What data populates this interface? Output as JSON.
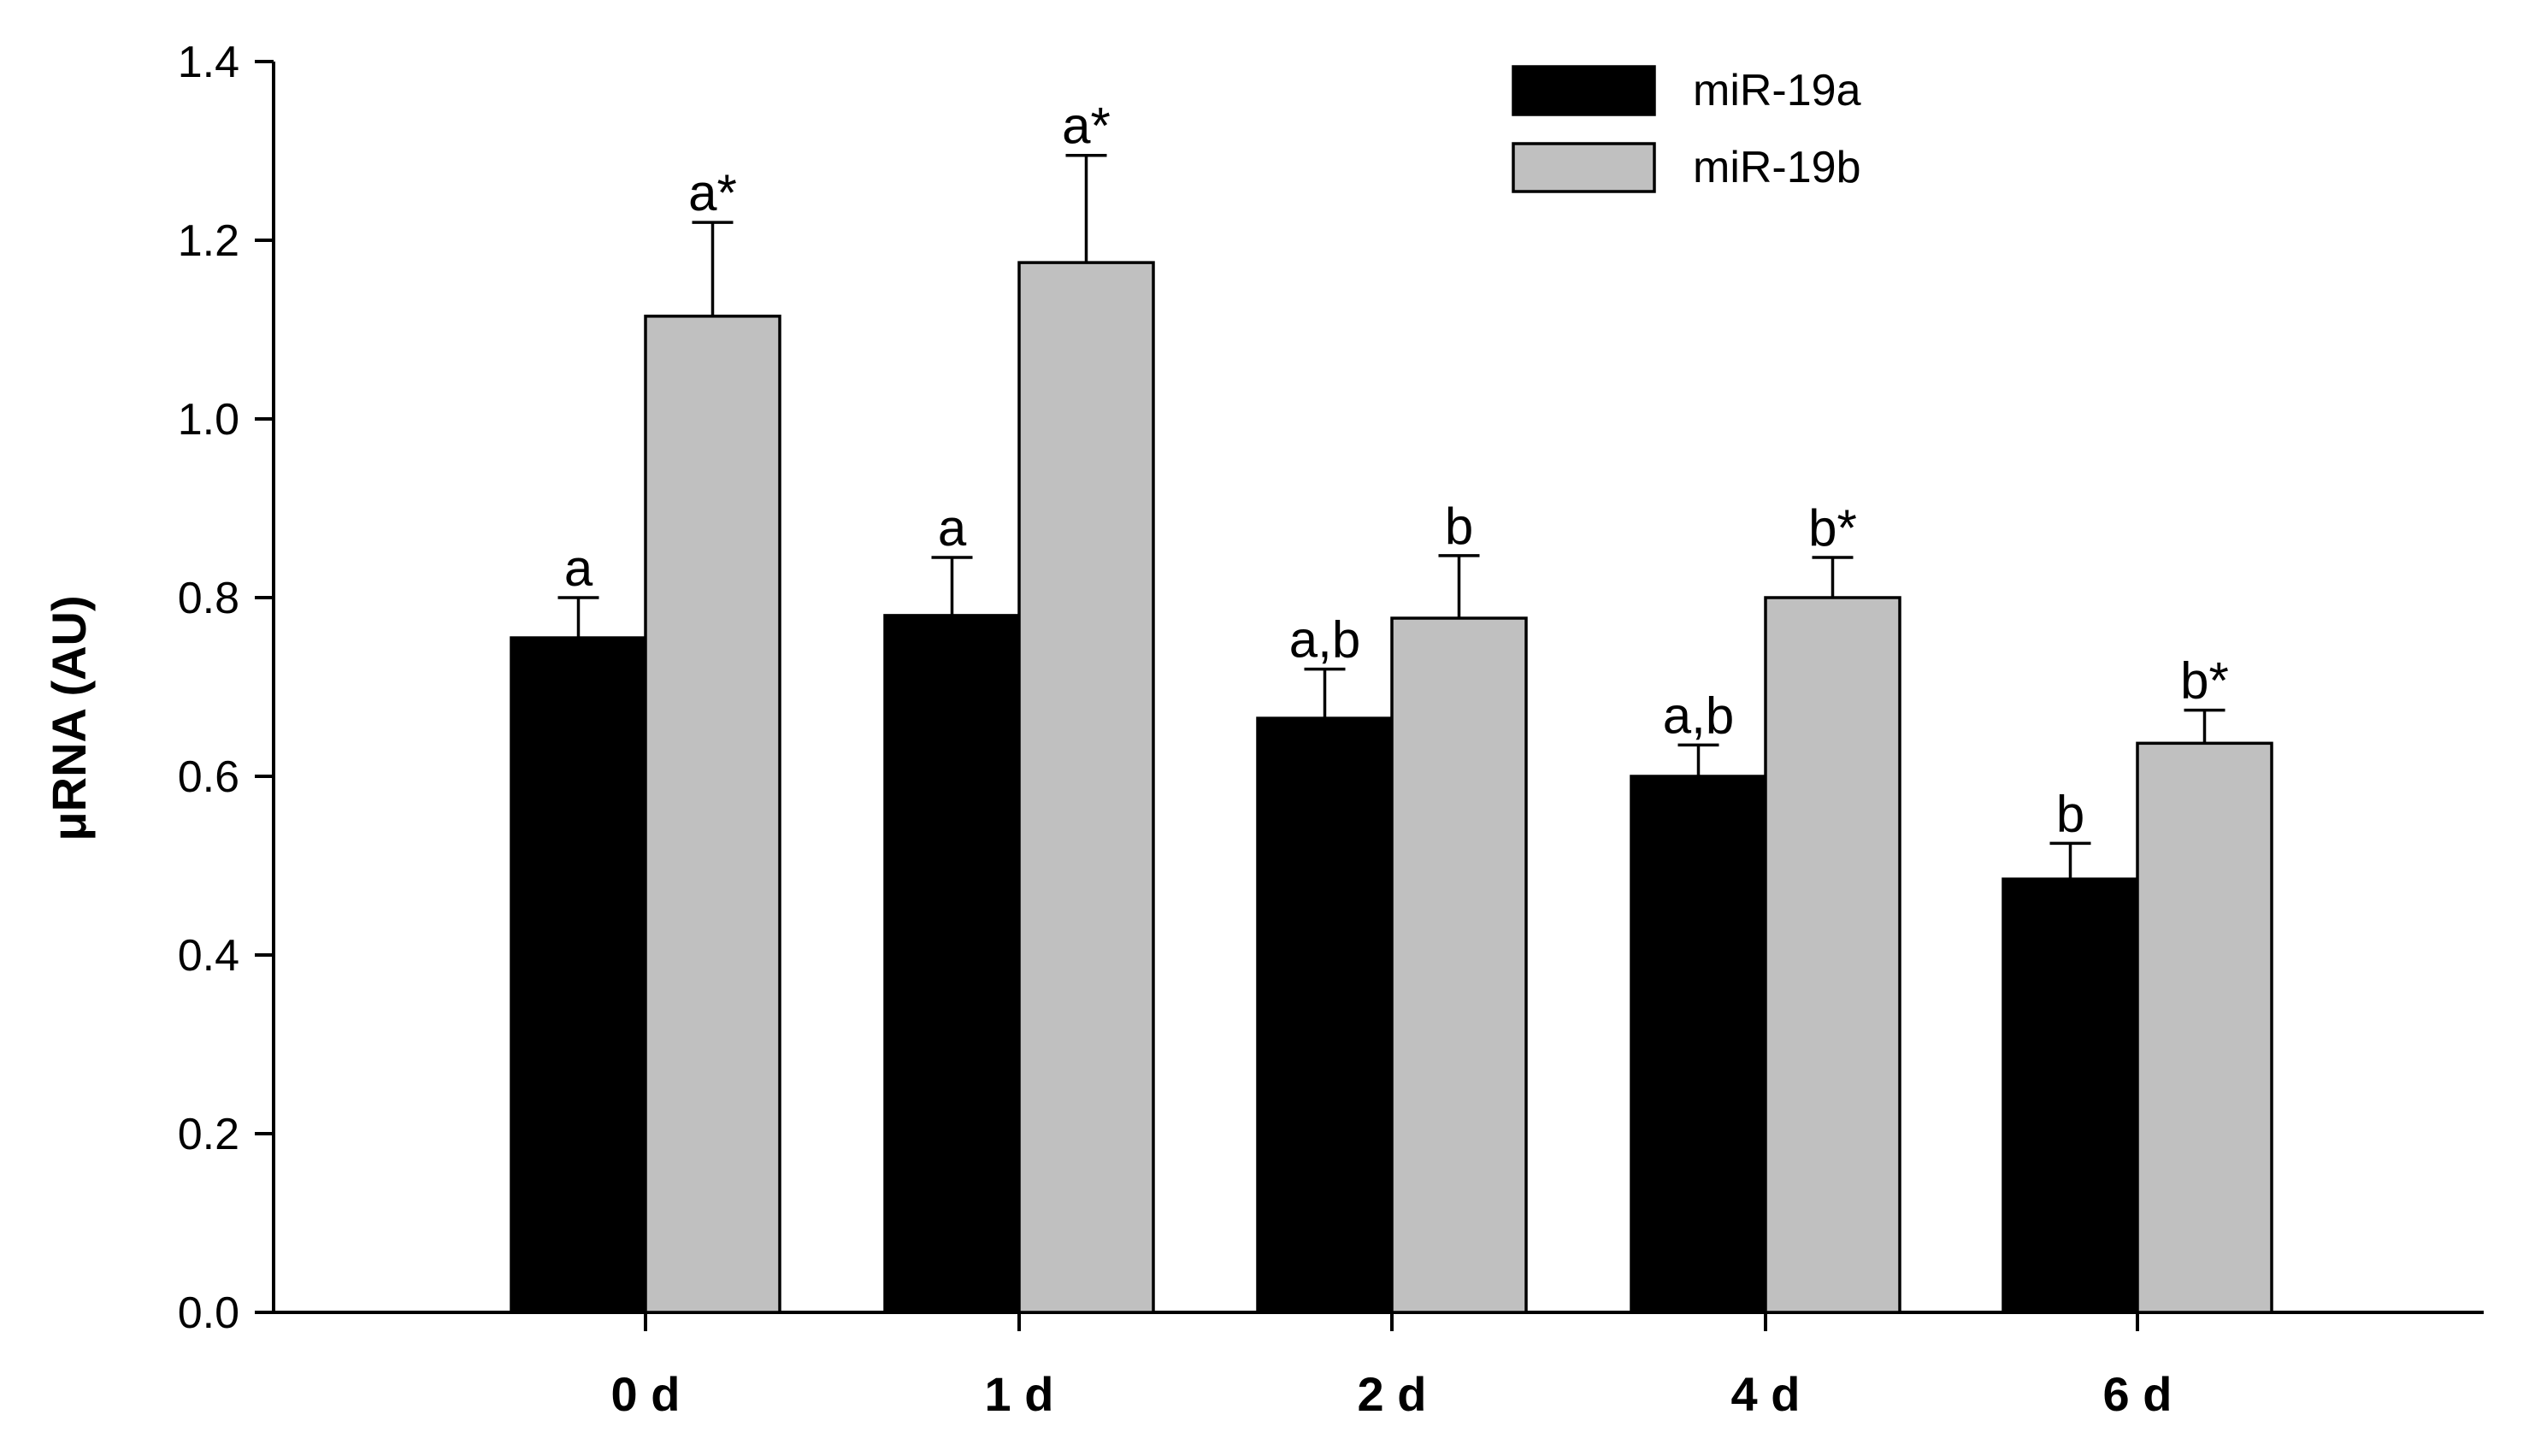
{
  "chart_data": {
    "type": "bar",
    "title": "",
    "xlabel": "",
    "ylabel": "μRNA (AU)",
    "ylim": [
      0,
      1.4
    ],
    "yticks": [
      0.0,
      0.2,
      0.4,
      0.6,
      0.8,
      1.0,
      1.2,
      1.4
    ],
    "ytick_labels": [
      "0.0",
      "0.2",
      "0.4",
      "0.6",
      "0.8",
      "1.0",
      "1.2",
      "1.4"
    ],
    "categories": [
      "0 d",
      "1 d",
      "2 d",
      "4 d",
      "6 d"
    ],
    "legend_position": "top-right",
    "series": [
      {
        "name": "miR-19a",
        "color": "#000000",
        "values": [
          0.755,
          0.78,
          0.665,
          0.6,
          0.485
        ],
        "errors": [
          0.045,
          0.065,
          0.055,
          0.035,
          0.04
        ],
        "labels": [
          "a",
          "a",
          "a,b",
          "a,b",
          "b"
        ]
      },
      {
        "name": "miR-19b",
        "color": "#c0c0c0",
        "values": [
          1.115,
          1.175,
          0.777,
          0.8,
          0.637
        ],
        "errors": [
          0.105,
          0.12,
          0.07,
          0.045,
          0.037
        ],
        "labels": [
          "a*",
          "a*",
          "b",
          "b*",
          "b*"
        ]
      }
    ]
  }
}
